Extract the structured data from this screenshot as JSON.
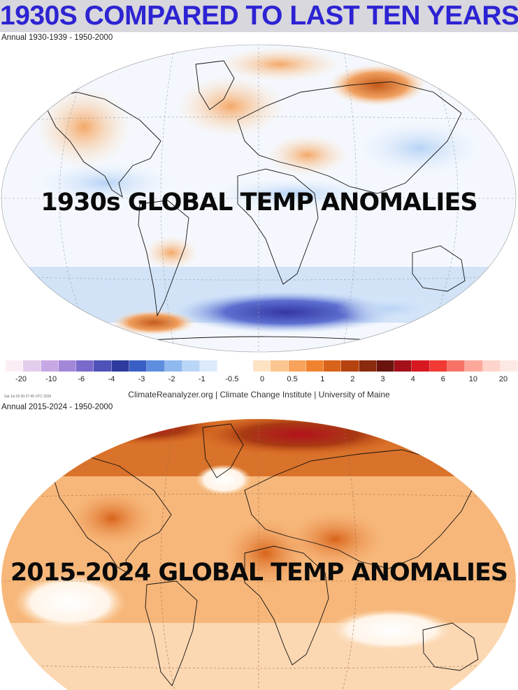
{
  "header": {
    "title": "1930S COMPARED TO LAST TEN YEARS"
  },
  "map_top": {
    "subtitle": "Annual 1930-1939 - 1950-2000",
    "overlay_label": "1930s GLOBAL TEMP ANOMALIES"
  },
  "colorbar": {
    "ticks": [
      "-20",
      "-10",
      "-6",
      "-4",
      "-3",
      "-2",
      "-1",
      "-0.5",
      "0",
      "0.5",
      "1",
      "2",
      "3",
      "4",
      "6",
      "10",
      "20"
    ],
    "colors": [
      "#fbeef5",
      "#e4cdec",
      "#c8a8e4",
      "#a287d9",
      "#7a6acb",
      "#4f52b8",
      "#2e3a9e",
      "#3a5fc4",
      "#5e8fde",
      "#8fb9ef",
      "#bad6f6",
      "#dcebfb",
      "#ffffff",
      "#ffffff",
      "#fde2c4",
      "#fbc58f",
      "#f7a35c",
      "#f0832f",
      "#d8631a",
      "#b54310",
      "#8a2a0e",
      "#6a1410",
      "#a4101a",
      "#d81820",
      "#f03a33",
      "#f87268",
      "#fca99c",
      "#fdd4cc",
      "#fde9e4"
    ],
    "credit": "ClimateReanalyzer.org | Climate Change Institute | University of Maine",
    "timestamp": "Sat Jul 26 00:27:45 UTC 2025"
  },
  "map_bottom": {
    "subtitle": "Annual 2015-2024 - 1950-2000",
    "overlay_label": "2015-2024 GLOBAL TEMP ANOMALIES"
  }
}
